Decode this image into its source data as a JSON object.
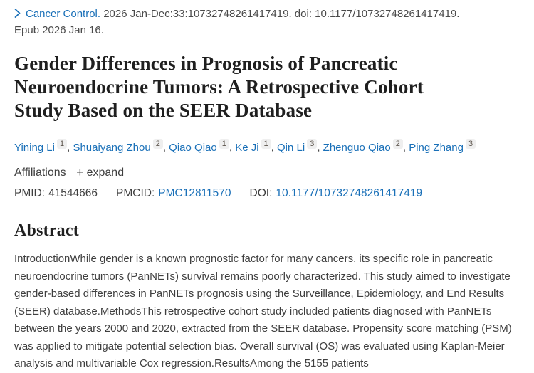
{
  "citation": {
    "journal": "Cancer Control.",
    "detail": "2026 Jan-Dec:33:10732748261417419.",
    "doi_prefix": "doi:",
    "doi_text": "10.1177/10732748261417419.",
    "epub": "Epub 2026 Jan 16."
  },
  "title": {
    "full": "Gender Differences in Prognosis of Pancreatic Neuroendocrine Tumors: A Retrospective Cohort Study Based on the SEER Database",
    "lines": [
      "Gender Differences in Prognosis of Pancreatic",
      "Neuroendocrine Tumors: A Retrospective Cohort",
      "Study Based on the SEER Database"
    ]
  },
  "authors": [
    {
      "name": "Yining Li",
      "sup": "1"
    },
    {
      "name": "Shuaiyang Zhou",
      "sup": "2"
    },
    {
      "name": "Qiao Qiao",
      "sup": "1"
    },
    {
      "name": "Ke Ji",
      "sup": "1"
    },
    {
      "name": "Qin Li",
      "sup": "3"
    },
    {
      "name": "Zhenguo Qiao",
      "sup": "2"
    },
    {
      "name": "Ping Zhang",
      "sup": "3"
    }
  ],
  "affiliations": {
    "label": "Affiliations",
    "plus": "+",
    "expand_label": "expand"
  },
  "identifiers": {
    "pmid_label": "PMID:",
    "pmid_value": "41544666",
    "pmcid_label": "PMCID:",
    "pmcid_value": "PMC12811570",
    "doi_label": "DOI:",
    "doi_value": "10.1177/10732748261417419"
  },
  "abstract": {
    "heading": "Abstract",
    "text": "IntroductionWhile gender is a known prognostic factor for many cancers, its specific role in pancreatic neuroendocrine tumors (PanNETs) survival remains poorly characterized. This study aimed to investigate gender-based differences in PanNETs prognosis using the Surveillance, Epidemiology, and End Results (SEER) database.MethodsThis retrospective cohort study included patients diagnosed with PanNETs between the years 2000 and 2020, extracted from the SEER database. Propensity score matching (PSM) was applied to mitigate potential selection bias. Overall survival (OS) was evaluated using Kaplan-Meier analysis and multivariable Cox regression.ResultsAmong the 5155 patients"
  },
  "colors": {
    "link": "#1a70b8",
    "heading": "#1f1f1f",
    "body_text": "#3f3f3f"
  }
}
